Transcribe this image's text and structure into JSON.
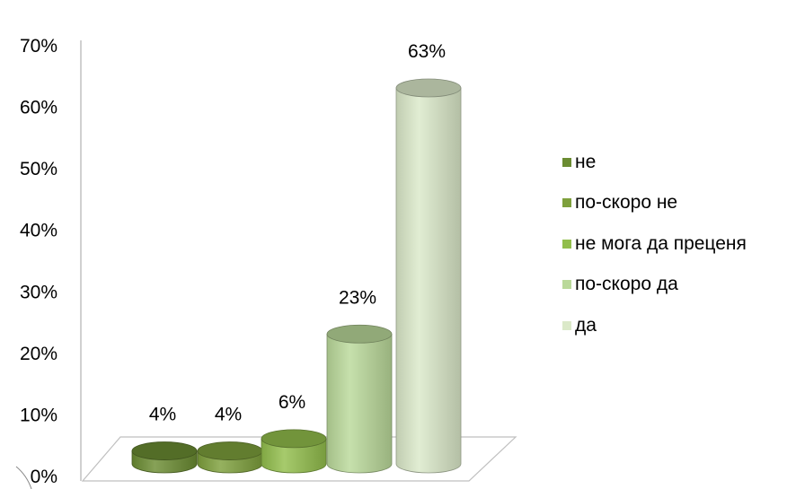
{
  "chart_data": {
    "type": "bar",
    "style": "3d-cylinder",
    "categories": [
      "не",
      "по-скоро не",
      "не мога да преценя",
      "по-скоро да",
      "да"
    ],
    "values": [
      4,
      4,
      6,
      23,
      63
    ],
    "data_labels": [
      "4%",
      "4%",
      "6%",
      "23%",
      "63%"
    ],
    "colors": [
      "#6b8c32",
      "#7ea03c",
      "#92be4c",
      "#bad99a",
      "#dbe9c9"
    ],
    "y_ticks": [
      "0%",
      "10%",
      "20%",
      "30%",
      "40%",
      "50%",
      "60%",
      "70%"
    ],
    "ylim": [
      0,
      70
    ],
    "legend_position": "right",
    "legend": [
      {
        "label": "не",
        "color": "#6b8c32"
      },
      {
        "label": "по-скоро не",
        "color": "#7ea03c"
      },
      {
        "label": "не мога да преценя",
        "color": "#92be4c"
      },
      {
        "label": "по-скоро да",
        "color": "#bad99a"
      },
      {
        "label": "да",
        "color": "#dbe9c9"
      }
    ]
  }
}
